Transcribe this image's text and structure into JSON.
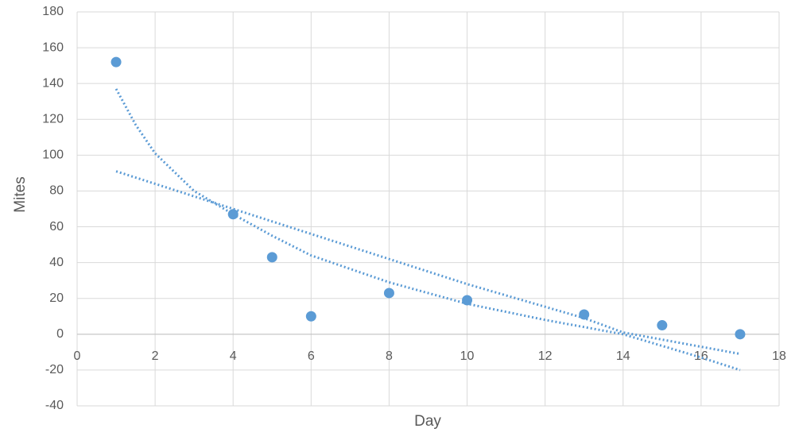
{
  "chart_data": {
    "type": "scatter",
    "x_label": "Day",
    "y_label": "Mites",
    "series": [
      {
        "type": "scatter",
        "color": "#5b9bd5",
        "x": [
          1,
          4,
          5,
          6,
          8,
          10,
          13,
          15,
          17
        ],
        "values": [
          152,
          67,
          43,
          10,
          23,
          19,
          11,
          5,
          0
        ]
      },
      {
        "type": "line",
        "line_style": "dotted",
        "color": "#5b9bd5",
        "x": [
          1,
          1.5,
          2,
          3,
          4,
          5,
          6,
          8,
          10,
          12,
          14,
          16,
          17
        ],
        "values": [
          137,
          117,
          101,
          80,
          67,
          55,
          44,
          29,
          17,
          8,
          0,
          -13,
          -20
        ]
      },
      {
        "type": "line",
        "line_style": "dotted",
        "color": "#5b9bd5",
        "x": [
          1,
          4,
          8,
          10,
          13,
          14,
          17
        ],
        "values": [
          91,
          70,
          42,
          28,
          9,
          1,
          -11
        ]
      }
    ],
    "xlim": [
      0,
      18
    ],
    "xticks": [
      0,
      2,
      4,
      6,
      8,
      10,
      12,
      14,
      16,
      18
    ],
    "ylim": [
      -40,
      180
    ],
    "yticks": [
      -40,
      -20,
      0,
      20,
      40,
      60,
      80,
      100,
      120,
      140,
      160,
      180
    ],
    "grid": true
  }
}
